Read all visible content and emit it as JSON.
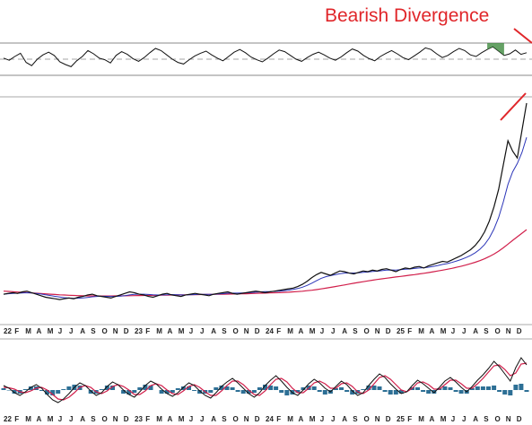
{
  "chart_data": [
    {
      "panel": "rsi",
      "type": "line",
      "series": [
        {
          "values": [
            52,
            48,
            55,
            61,
            44,
            38,
            50,
            58,
            63,
            57,
            45,
            40,
            36,
            47,
            55,
            66,
            60,
            52,
            49,
            43,
            57,
            64,
            59,
            51,
            46,
            53,
            62,
            70,
            66,
            58,
            50,
            44,
            41,
            49,
            56,
            61,
            65,
            58,
            52,
            47,
            55,
            63,
            68,
            62,
            54,
            49,
            45,
            52,
            60,
            67,
            64,
            57,
            50,
            46,
            53,
            59,
            63,
            58,
            52,
            48,
            54,
            62,
            69,
            65,
            57,
            51,
            47,
            55,
            61,
            66,
            60,
            53,
            49,
            56,
            63,
            71,
            68,
            60,
            53,
            57,
            64,
            70,
            66,
            58,
            55,
            62,
            68,
            73,
            65,
            57,
            60,
            67,
            59,
            62
          ]
        }
      ],
      "overbought_level": 70,
      "oversold_level": 30,
      "midline": 50,
      "annotation": "Bearish Divergence"
    },
    {
      "panel": "price",
      "type": "line",
      "x_ticks": [
        "22",
        "F",
        "M",
        "A",
        "M",
        "J",
        "J",
        "A",
        "S",
        "O",
        "N",
        "D",
        "23",
        "F",
        "M",
        "A",
        "M",
        "J",
        "J",
        "A",
        "S",
        "O",
        "N",
        "D",
        "24",
        "F",
        "M",
        "A",
        "M",
        "J",
        "J",
        "A",
        "S",
        "O",
        "N",
        "D",
        "25",
        "F",
        "M",
        "A",
        "M",
        "J",
        "J",
        "A",
        "S",
        "O",
        "N",
        "D"
      ],
      "price_series": [
        30,
        31,
        32,
        31,
        33,
        34,
        32,
        30,
        28,
        26,
        25,
        24,
        23,
        24,
        25,
        24,
        26,
        27,
        29,
        30,
        28,
        27,
        26,
        25,
        27,
        29,
        31,
        33,
        32,
        30,
        29,
        27,
        26,
        28,
        30,
        31,
        29,
        28,
        27,
        29,
        30,
        31,
        30,
        29,
        28,
        30,
        31,
        32,
        33,
        31,
        30,
        31,
        32,
        33,
        34,
        33,
        32,
        33,
        34,
        35,
        36,
        37,
        38,
        40,
        43,
        47,
        52,
        56,
        59,
        57,
        55,
        58,
        61,
        60,
        58,
        57,
        59,
        61,
        60,
        62,
        61,
        63,
        64,
        62,
        60,
        63,
        65,
        64,
        66,
        67,
        65,
        68,
        70,
        72,
        74,
        73,
        76,
        79,
        82,
        86,
        90,
        96,
        104,
        115,
        130,
        150,
        175,
        210,
        245,
        230,
        220,
        260,
        300
      ],
      "ma_fast": [
        30,
        30.5,
        31,
        31.2,
        31.5,
        31.8,
        31.6,
        31,
        30.2,
        29.2,
        28.2,
        27.2,
        26.2,
        25.4,
        24.9,
        24.6,
        24.7,
        25.1,
        25.8,
        26.6,
        27.1,
        27.3,
        27.2,
        27,
        27,
        27.4,
        28.1,
        29,
        29.7,
        30,
        30,
        29.6,
        29.1,
        28.9,
        29,
        29.3,
        29.5,
        29.3,
        29,
        28.9,
        29.1,
        29.5,
        29.8,
        29.9,
        29.8,
        29.9,
        30.2,
        30.7,
        31.2,
        31.4,
        31.4,
        31.5,
        31.7,
        32.1,
        32.6,
        33,
        33.2,
        33.3,
        33.6,
        34,
        34.6,
        35.3,
        36.2,
        37.4,
        39.2,
        41.6,
        44.6,
        47.8,
        51,
        53.2,
        54.6,
        55.8,
        57.2,
        58,
        58.2,
        58.2,
        58.5,
        59,
        59.5,
        60.2,
        60.6,
        61.3,
        62,
        62.3,
        62.2,
        62.6,
        63.2,
        63.6,
        64.3,
        65,
        65.3,
        66.1,
        67.1,
        68.4,
        69.8,
        71,
        72.6,
        74.5,
        76.6,
        79.2,
        82.1,
        85.8,
        90.6,
        97.3,
        106.4,
        118.7,
        135,
        157,
        182,
        200,
        212,
        228,
        250
      ],
      "ma_slow": [
        34,
        33.6,
        33.2,
        32.8,
        32.4,
        32,
        31.6,
        31.2,
        30.8,
        30.4,
        30,
        29.6,
        29.2,
        28.9,
        28.6,
        28.3,
        28.1,
        27.9,
        27.8,
        27.7,
        27.6,
        27.6,
        27.6,
        27.6,
        27.7,
        27.8,
        27.9,
        28,
        28.1,
        28.2,
        28.3,
        28.4,
        28.5,
        28.6,
        28.7,
        28.8,
        28.9,
        29,
        29.1,
        29.2,
        29.3,
        29.4,
        29.5,
        29.6,
        29.7,
        29.8,
        29.9,
        30,
        30.1,
        30.2,
        30.3,
        30.4,
        30.6,
        30.8,
        31,
        31.2,
        31.4,
        31.6,
        31.8,
        32,
        32.3,
        32.6,
        33,
        33.4,
        33.9,
        34.5,
        35.2,
        36,
        36.9,
        37.9,
        38.9,
        40,
        41.1,
        42.2,
        43.3,
        44.4,
        45.5,
        46.5,
        47.5,
        48.5,
        49.4,
        50.3,
        51.2,
        52,
        52.8,
        53.6,
        54.4,
        55.2,
        56,
        56.9,
        57.8,
        58.8,
        59.8,
        60.9,
        62,
        63.2,
        64.5,
        65.9,
        67.4,
        69,
        70.8,
        72.8,
        75,
        77.6,
        80.6,
        84,
        88,
        92.6,
        97.8,
        103,
        108,
        113,
        118
      ],
      "ylim": [
        0,
        320
      ],
      "annotation": "trendline-red"
    },
    {
      "panel": "macd",
      "type": "line",
      "x_ticks": [
        "22",
        "F",
        "M",
        "A",
        "M",
        "J",
        "J",
        "A",
        "S",
        "O",
        "N",
        "D",
        "23",
        "F",
        "M",
        "A",
        "M",
        "J",
        "J",
        "A",
        "S",
        "O",
        "N",
        "D",
        "24",
        "F",
        "M",
        "A",
        "M",
        "J",
        "J",
        "A",
        "S",
        "O",
        "N",
        "D",
        "25",
        "F",
        "M",
        "A",
        "M",
        "J",
        "J",
        "A",
        "S",
        "O",
        "N",
        "D"
      ],
      "macd": [
        0.5,
        0.2,
        -0.3,
        -0.6,
        -0.2,
        0.3,
        0.6,
        0.2,
        -0.5,
        -1.1,
        -1.4,
        -1,
        -0.4,
        0.3,
        0.8,
        0.5,
        -0.1,
        -0.6,
        -0.3,
        0.4,
        0.9,
        0.6,
        0,
        -0.5,
        -0.8,
        -0.2,
        0.5,
        1,
        0.7,
        0.1,
        -0.4,
        -0.7,
        -0.3,
        0.3,
        0.8,
        0.5,
        -0.1,
        -0.6,
        -0.9,
        -0.3,
        0.4,
        0.9,
        1.3,
        0.8,
        0.2,
        -0.4,
        -0.8,
        -0.3,
        0.5,
        1.1,
        1.6,
        1,
        0.3,
        -0.3,
        -0.6,
        0,
        0.7,
        1.2,
        0.8,
        0.2,
        -0.2,
        0.4,
        1,
        0.6,
        -0.1,
        -0.6,
        -0.3,
        0.5,
        1.2,
        1.8,
        1.4,
        0.7,
        0.1,
        -0.4,
        -0.2,
        0.5,
        1.1,
        0.7,
        0.2,
        -0.3,
        0.3,
        1,
        1.4,
        0.9,
        0.3,
        -0.2,
        0.4,
        1.1,
        1.7,
        2.4,
        3.2,
        2.6,
        1.8,
        1,
        2.5,
        3.6,
        2.8
      ],
      "signal": [
        0.3,
        0.25,
        0.1,
        -0.2,
        -0.3,
        -0.1,
        0.2,
        0.3,
        0,
        -0.5,
        -1,
        -1.1,
        -0.8,
        -0.3,
        0.3,
        0.5,
        0.3,
        -0.2,
        -0.4,
        -0.1,
        0.4,
        0.6,
        0.4,
        0,
        -0.5,
        -0.5,
        -0.1,
        0.5,
        0.7,
        0.5,
        0,
        -0.4,
        -0.5,
        -0.1,
        0.4,
        0.6,
        0.3,
        -0.2,
        -0.6,
        -0.6,
        -0.1,
        0.5,
        1,
        1,
        0.6,
        0,
        -0.5,
        -0.6,
        -0.1,
        0.6,
        1.2,
        1.3,
        0.9,
        0.2,
        -0.3,
        -0.3,
        0.2,
        0.8,
        1,
        0.7,
        0.2,
        0.2,
        0.7,
        0.8,
        0.4,
        -0.2,
        -0.4,
        0,
        0.7,
        1.4,
        1.6,
        1.2,
        0.6,
        0,
        -0.2,
        0.2,
        0.8,
        0.9,
        0.6,
        0.1,
        0.1,
        0.6,
        1.1,
        1.1,
        0.7,
        0.2,
        0.2,
        0.7,
        1.3,
        2,
        2.7,
        2.8,
        2.3,
        1.6,
        1.9,
        2.9,
        3
      ],
      "histogram": [
        0.2,
        -0.05,
        -0.4,
        -0.4,
        0.1,
        0.4,
        0.4,
        -0.1,
        -0.5,
        -0.6,
        -0.4,
        0.1,
        0.4,
        0.6,
        0.5,
        0,
        -0.4,
        -0.4,
        0.1,
        0.5,
        0.5,
        0,
        -0.4,
        -0.5,
        -0.3,
        0.3,
        0.6,
        0.5,
        0,
        -0.4,
        -0.4,
        -0.3,
        0.2,
        0.4,
        0.4,
        -0.1,
        -0.4,
        -0.4,
        -0.3,
        0.3,
        0.5,
        0.4,
        0.3,
        -0.2,
        -0.4,
        -0.4,
        -0.3,
        0.3,
        0.6,
        0.5,
        0.4,
        -0.3,
        -0.6,
        -0.5,
        -0.3,
        0.3,
        0.5,
        0.4,
        -0.2,
        -0.5,
        -0.4,
        0.2,
        0.3,
        -0.2,
        -0.5,
        -0.4,
        0.1,
        0.5,
        0.5,
        0.4,
        -0.2,
        -0.5,
        -0.5,
        -0.4,
        0,
        0.3,
        0.3,
        -0.2,
        -0.4,
        -0.4,
        0.2,
        0.4,
        0.3,
        -0.2,
        -0.4,
        -0.4,
        0.2,
        0.4,
        0.4,
        0.4,
        0.5,
        -0.2,
        -0.5,
        -0.6,
        0.6,
        0.7,
        -0.2
      ]
    }
  ],
  "colors": {
    "price": "#111111",
    "price_accent": "#b5173a",
    "ma_fast": "#2b35b8",
    "ma_slow": "#d11f4b",
    "histogram": "#2d6f95",
    "rsi_fill": "#3f8a3f",
    "annotation": "#e0262a"
  }
}
